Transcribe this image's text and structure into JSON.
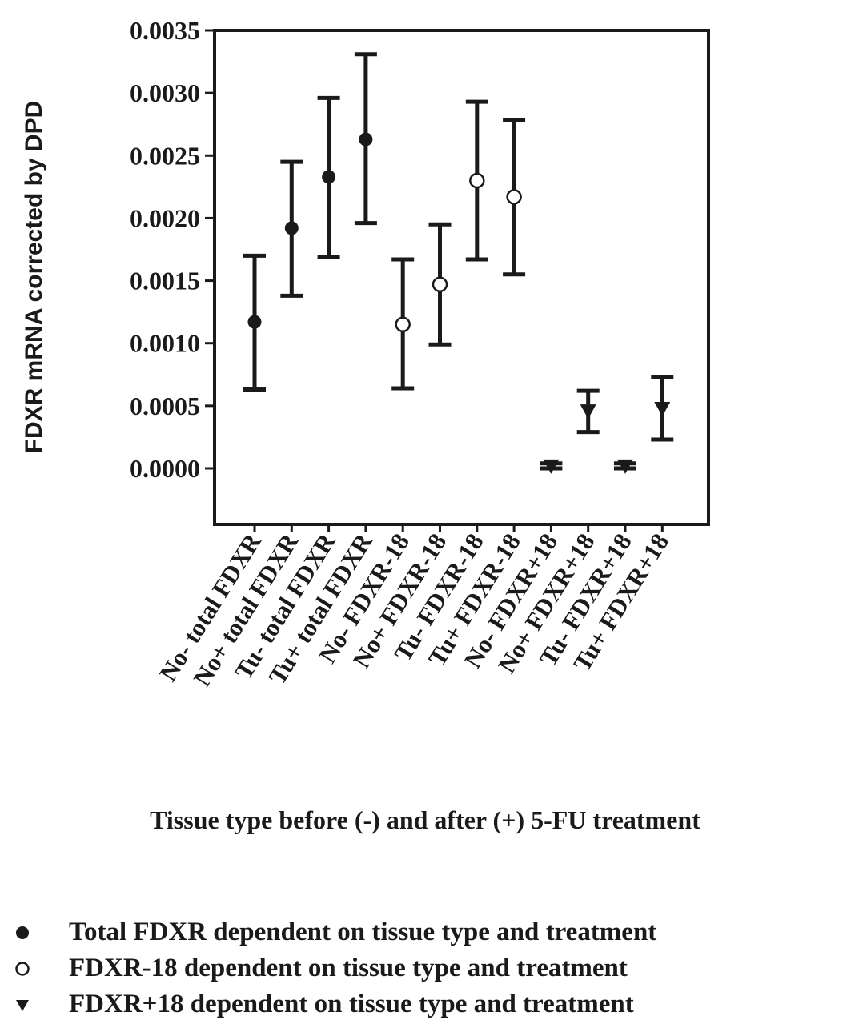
{
  "chart_data": {
    "type": "errorbar",
    "title": "",
    "xlabel": "Tissue type before (-) and after (+) 5-FU treatment",
    "ylabel": "FDXR mRNA corrected by DPD",
    "ylim": [
      -0.0004,
      0.0035
    ],
    "yticks": [
      "0.0035",
      "0.0030",
      "0.0025",
      "0.0020",
      "0.0015",
      "0.0010",
      "0.0005",
      "0.0000"
    ],
    "categories": [
      "No- total FDXR",
      "No+ total FDXR",
      "Tu- total FDXR",
      "Tu+ total FDXR",
      "No- FDXR-18",
      "No+ FDXR-18",
      "Tu- FDXR-18",
      "Tu+ FDXR-18",
      "No- FDXR+18",
      "No+ FDXR+18",
      "Tu- FDXR+18",
      "Tu+ FDXR+18"
    ],
    "grid": false,
    "legend_position": "bottom",
    "series": [
      {
        "name": "Total FDXR dependent on tissue type and treatment",
        "marker": "filled-circle",
        "category_indices": [
          0,
          1,
          2,
          3
        ],
        "mean": [
          0.00117,
          0.00192,
          0.00233,
          0.00263
        ],
        "lower": [
          0.00063,
          0.00138,
          0.00169,
          0.00196
        ],
        "upper": [
          0.0017,
          0.00245,
          0.00296,
          0.00331
        ]
      },
      {
        "name": "FDXR-18 dependent on tissue type and treatment",
        "marker": "open-circle",
        "category_indices": [
          4,
          5,
          6,
          7
        ],
        "mean": [
          0.00115,
          0.00147,
          0.0023,
          0.00217
        ],
        "lower": [
          0.00064,
          0.00099,
          0.00167,
          0.00155
        ],
        "upper": [
          0.00167,
          0.00195,
          0.00293,
          0.00278
        ]
      },
      {
        "name": "FDXR+18 dependent on tissue type and treatment",
        "marker": "filled-triangle-down",
        "category_indices": [
          8,
          9,
          10,
          11
        ],
        "mean": [
          2e-05,
          0.00046,
          2e-05,
          0.00048
        ],
        "lower": [
          0.0,
          0.00029,
          0.0,
          0.00023
        ],
        "upper": [
          4e-05,
          0.00062,
          4e-05,
          0.00073
        ]
      }
    ]
  },
  "colors": {
    "ink": "#1a1a1a",
    "background": "#ffffff"
  }
}
